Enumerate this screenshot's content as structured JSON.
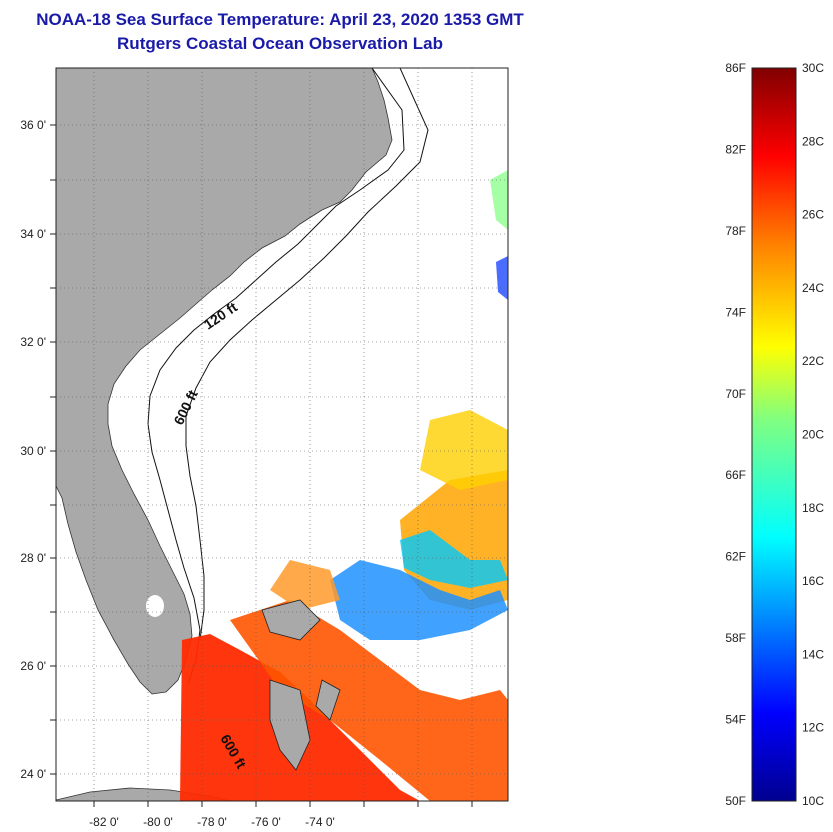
{
  "title": "NOAA-18 Sea Surface Temperature:  April 23, 2020 1353 GMT",
  "subtitle": "Rutgers Coastal Ocean Observation Lab",
  "map": {
    "lon_ticks": [
      "-82 0'",
      "-80 0'",
      "-78 0'",
      "-76 0'",
      "-74 0'"
    ],
    "lat_ticks": [
      "36 0'",
      "34 0'",
      "32 0'",
      "30 0'",
      "28 0'",
      "26 0'",
      "24 0'"
    ],
    "contour_labels": [
      "120 ft",
      "600 ft",
      "600 ft"
    ],
    "colors": {
      "land": "#a9a9a9",
      "ocean": "#ffffff"
    }
  },
  "colorbar": {
    "fahrenheit": [
      "86F",
      "82F",
      "78F",
      "74F",
      "70F",
      "66F",
      "62F",
      "58F",
      "54F",
      "50F"
    ],
    "celsius": [
      "30C",
      "28C",
      "26C",
      "24C",
      "22C",
      "20C",
      "18C",
      "16C",
      "14C",
      "12C",
      "10C"
    ],
    "colors": [
      "#00008f",
      "#0000ff",
      "#0080ff",
      "#00ffff",
      "#80ff80",
      "#ffff00",
      "#ff8000",
      "#ff0000",
      "#800000"
    ]
  }
}
